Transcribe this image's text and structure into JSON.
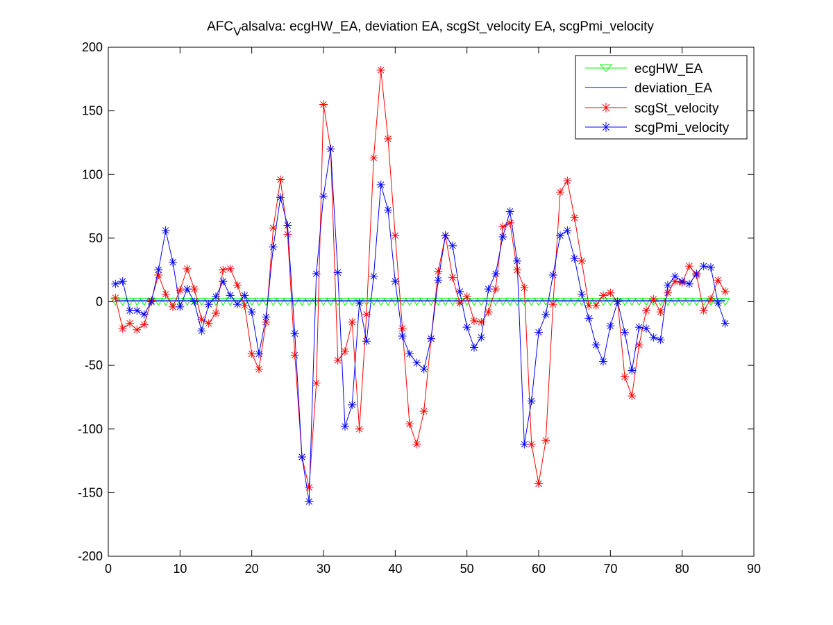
{
  "chart_data": {
    "type": "line",
    "title": "AFC",
    "title_subscript": "V",
    "title_rest": "alsalva: ecgHW_EA, deviation EA, scgSt_velocity EA, scgPmi_velocity",
    "xlabel": "",
    "ylabel": "",
    "xlim": [
      0,
      90
    ],
    "ylim": [
      -200,
      200
    ],
    "xticks": [
      0,
      10,
      20,
      30,
      40,
      50,
      60,
      70,
      80,
      90
    ],
    "yticks": [
      -200,
      -150,
      -100,
      -50,
      0,
      50,
      100,
      150,
      200
    ],
    "grid": false,
    "legend_position": "top-right",
    "series": [
      {
        "name": "ecgHW_EA",
        "color": "#00ff00",
        "marker": "triangle-down",
        "x": [
          1,
          2,
          3,
          4,
          5,
          6,
          7,
          8,
          9,
          10,
          11,
          12,
          13,
          14,
          15,
          16,
          17,
          18,
          19,
          20,
          21,
          22,
          23,
          24,
          25,
          26,
          27,
          28,
          29,
          30,
          31,
          32,
          33,
          34,
          35,
          36,
          37,
          38,
          39,
          40,
          41,
          42,
          43,
          44,
          45,
          46,
          47,
          48,
          49,
          50,
          51,
          52,
          53,
          54,
          55,
          56,
          57,
          58,
          59,
          60,
          61,
          62,
          63,
          64,
          65,
          66,
          67,
          68,
          69,
          70,
          71,
          72,
          73,
          74,
          75,
          76,
          77,
          78,
          79,
          80,
          81,
          82,
          83,
          84,
          85,
          86
        ],
        "y": [
          0,
          0,
          0,
          0,
          0,
          0,
          0,
          0,
          0,
          0,
          0,
          0,
          0,
          0,
          0,
          0,
          0,
          0,
          0,
          0,
          0,
          0,
          0,
          0,
          0,
          0,
          0,
          0,
          0,
          0,
          0,
          0,
          0,
          0,
          0,
          0,
          0,
          0,
          0,
          0,
          0,
          0,
          0,
          0,
          0,
          0,
          0,
          0,
          0,
          0,
          0,
          0,
          0,
          0,
          0,
          0,
          0,
          0,
          0,
          0,
          0,
          0,
          0,
          0,
          0,
          0,
          0,
          0,
          0,
          0,
          0,
          0,
          0,
          0,
          0,
          0,
          0,
          0,
          0,
          0,
          0,
          0,
          0,
          0,
          0,
          0
        ]
      },
      {
        "name": "deviation_EA",
        "color": "#0000ff",
        "marker": "none",
        "x": [
          1,
          86
        ],
        "y": [
          1,
          1
        ]
      },
      {
        "name": "scgSt_velocity",
        "color": "#ff0000",
        "marker": "asterisk",
        "x": [
          1,
          2,
          3,
          4,
          5,
          6,
          7,
          8,
          9,
          10,
          11,
          12,
          13,
          14,
          15,
          16,
          17,
          18,
          19,
          20,
          21,
          22,
          23,
          24,
          25,
          26,
          27,
          28,
          29,
          30,
          31,
          32,
          33,
          34,
          35,
          36,
          37,
          38,
          39,
          40,
          41,
          42,
          43,
          44,
          45,
          46,
          47,
          48,
          49,
          50,
          51,
          52,
          53,
          54,
          55,
          56,
          57,
          58,
          59,
          60,
          61,
          62,
          63,
          64,
          65,
          66,
          67,
          68,
          69,
          70,
          71,
          72,
          73,
          74,
          75,
          76,
          77,
          78,
          79,
          80,
          81,
          82,
          83,
          84,
          85,
          86
        ],
        "y": [
          3,
          -21,
          -17,
          -22,
          -18,
          1,
          21,
          6,
          -4,
          9,
          26,
          10,
          -14,
          -17,
          -9,
          25,
          26,
          13,
          -3,
          -41,
          -53,
          -16,
          58,
          96,
          53,
          -42,
          -122,
          -146,
          -64,
          155,
          120,
          -46,
          -39,
          -16,
          -100,
          -10,
          113,
          182,
          128,
          52,
          -21,
          -96,
          -112,
          -86,
          -29,
          24,
          52,
          19,
          -1,
          4,
          -15,
          -16,
          -8,
          10,
          59,
          62,
          25,
          11,
          -112,
          -143,
          -109,
          -2,
          86,
          95,
          66,
          32,
          -3,
          -3,
          5,
          7,
          0,
          -59,
          -74,
          -34,
          -7,
          2,
          -8,
          7,
          16,
          15,
          28,
          21,
          -7,
          2,
          17,
          8
        ]
      },
      {
        "name": "scgPmi_velocity",
        "color": "#0000ff",
        "marker": "asterisk",
        "x": [
          1,
          2,
          3,
          4,
          5,
          6,
          7,
          8,
          9,
          10,
          11,
          12,
          13,
          14,
          15,
          16,
          17,
          18,
          19,
          20,
          21,
          22,
          23,
          24,
          25,
          26,
          27,
          28,
          29,
          30,
          31,
          32,
          33,
          34,
          35,
          36,
          37,
          38,
          39,
          40,
          41,
          42,
          43,
          44,
          45,
          46,
          47,
          48,
          49,
          50,
          51,
          52,
          53,
          54,
          55,
          56,
          57,
          58,
          59,
          60,
          61,
          62,
          63,
          64,
          65,
          66,
          67,
          68,
          69,
          70,
          71,
          72,
          73,
          74,
          75,
          76,
          77,
          78,
          79,
          80,
          81,
          82,
          83,
          84,
          85,
          86
        ],
        "y": [
          14,
          16,
          -7,
          -7,
          -10,
          0,
          25,
          56,
          31,
          -4,
          10,
          0,
          -23,
          -2,
          4,
          16,
          5,
          -2,
          5,
          -8,
          -41,
          -12,
          43,
          82,
          60,
          -25,
          -122,
          -157,
          22,
          83,
          120,
          23,
          -98,
          -81,
          -1,
          -31,
          20,
          92,
          72,
          16,
          -27,
          -41,
          -48,
          -53,
          -29,
          17,
          52,
          44,
          8,
          -20,
          -36,
          -28,
          10,
          22,
          51,
          71,
          32,
          -112,
          -78,
          -24,
          -10,
          21,
          52,
          56,
          34,
          6,
          -13,
          -34,
          -47,
          -19,
          0,
          -24,
          -54,
          -20,
          -21,
          -28,
          -30,
          13,
          20,
          16,
          14,
          22,
          28,
          27,
          -1,
          -17
        ]
      }
    ]
  }
}
